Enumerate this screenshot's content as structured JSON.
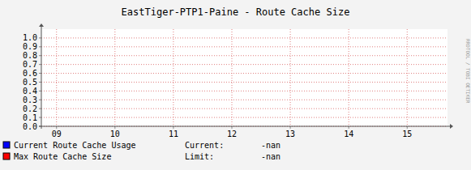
{
  "chart_data": {
    "type": "line",
    "title": "EastTiger-PTP1-Paine - Route Cache Size",
    "annotation": "RRDTOOL / TOBI OETIKER",
    "x": [],
    "series": [
      {
        "name": "Current Route Cache Usage",
        "color": "#0000ff",
        "values": [],
        "stat_label": "Current:",
        "stat_value": "-nan"
      },
      {
        "name": "Max Route Cache Size",
        "color": "#ff0000",
        "values": [],
        "stat_label": "Limit:",
        "stat_value": "-nan"
      }
    ],
    "xlim": [
      8.74,
      15.69
    ],
    "xticks": [
      {
        "value": 9,
        "label": "09"
      },
      10,
      11,
      12,
      13,
      14,
      15
    ],
    "ylim": [
      0,
      1.1
    ],
    "yticks": [
      {
        "value": 0,
        "label": "0.0"
      },
      0.1,
      0.2,
      0.3,
      0.4,
      0.5,
      0.6,
      0.7,
      0.8,
      0.9,
      {
        "value": 1,
        "label": "1.0"
      }
    ],
    "grid": true
  }
}
